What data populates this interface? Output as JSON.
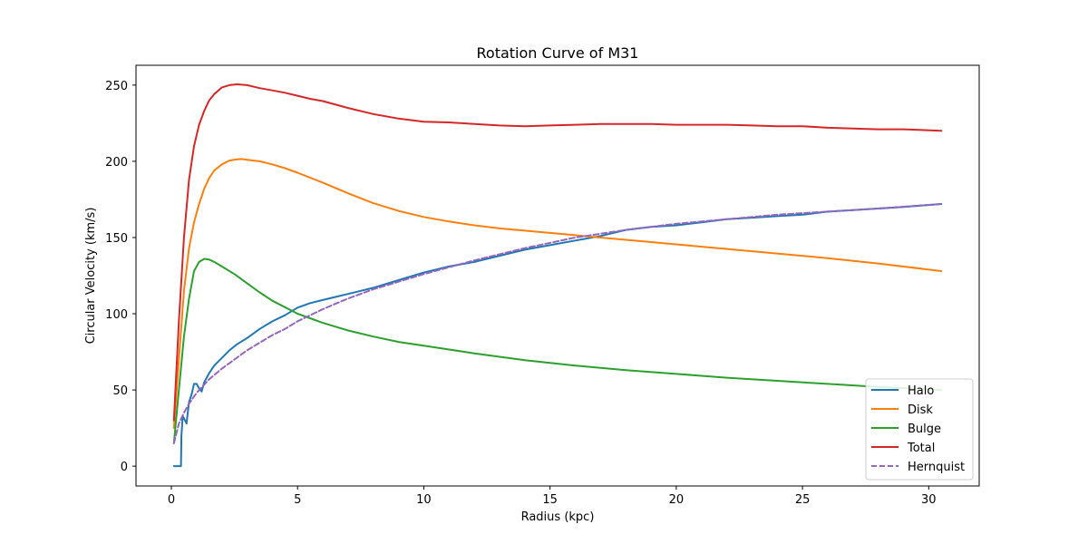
{
  "chart_data": {
    "type": "line",
    "title": "Rotation Curve of M31",
    "xlabel": "Radius (kpc)",
    "ylabel": "Circular Velocity (km/s)",
    "xlim": [
      -1.4,
      32.0
    ],
    "ylim": [
      -13,
      263
    ],
    "xticks": [
      0,
      5,
      10,
      15,
      20,
      25,
      30
    ],
    "yticks": [
      0,
      50,
      100,
      150,
      200,
      250
    ],
    "grid": false,
    "legend_position": "lower-right",
    "series": [
      {
        "name": "Halo",
        "color": "#1f77b4",
        "style": "solid",
        "x": [
          0.1,
          0.38,
          0.4,
          0.45,
          0.6,
          0.7,
          0.8,
          0.9,
          1.0,
          1.1,
          1.2,
          1.3,
          1.4,
          1.5,
          1.7,
          2.0,
          2.3,
          2.6,
          3.0,
          3.5,
          4.0,
          4.5,
          5.0,
          5.5,
          6.0,
          6.5,
          7.0,
          7.5,
          8.0,
          9.0,
          10.0,
          11.0,
          12.0,
          13.0,
          14.0,
          15.0,
          16.0,
          17.0,
          18.0,
          19.0,
          20.0,
          21.0,
          22.0,
          23.0,
          24.0,
          25.0,
          26.0,
          27.0,
          28.0,
          29.0,
          30.5
        ],
        "y": [
          0,
          0,
          20,
          33,
          28,
          42,
          47,
          54,
          54,
          51,
          49,
          55,
          58,
          61,
          66,
          71,
          76,
          80,
          84,
          90,
          95,
          99,
          104,
          107,
          109,
          111,
          113,
          115,
          117,
          122,
          127,
          131,
          134,
          138,
          142,
          145,
          148,
          151,
          155,
          157,
          158,
          160,
          162,
          163,
          164,
          165,
          167,
          168,
          169,
          170,
          172
        ]
      },
      {
        "name": "Disk",
        "color": "#ff7f0e",
        "style": "solid",
        "x": [
          0.1,
          0.3,
          0.5,
          0.7,
          0.9,
          1.1,
          1.3,
          1.5,
          1.7,
          2.0,
          2.3,
          2.6,
          2.8,
          3.0,
          3.5,
          4.0,
          4.5,
          5.0,
          6.0,
          7.0,
          8.0,
          9.0,
          10.0,
          11.0,
          12.0,
          13.0,
          14.0,
          15.0,
          16.0,
          17.0,
          18.0,
          20.0,
          22.0,
          24.0,
          26.0,
          28.0,
          30.5
        ],
        "y": [
          25,
          70,
          115,
          143,
          160,
          172,
          182,
          189,
          194,
          198,
          200.5,
          201.3,
          201.5,
          201,
          200,
          198,
          195.5,
          192.5,
          186,
          179,
          172.5,
          167.5,
          163.5,
          160.5,
          158,
          156,
          154.5,
          153,
          151.5,
          150,
          148.5,
          145.5,
          142.5,
          139.5,
          136.5,
          133,
          128
        ]
      },
      {
        "name": "Bulge",
        "color": "#2ca02c",
        "style": "solid",
        "x": [
          0.1,
          0.3,
          0.5,
          0.7,
          0.9,
          1.1,
          1.3,
          1.5,
          1.7,
          2.0,
          2.5,
          3.0,
          3.5,
          4.0,
          5.0,
          6.0,
          7.0,
          8.0,
          9.0,
          10.0,
          12.0,
          14.0,
          16.0,
          18.0,
          20.0,
          22.0,
          24.0,
          26.0,
          28.0,
          30.5
        ],
        "y": [
          15,
          50,
          85,
          110,
          128,
          134,
          136,
          135.5,
          134,
          131,
          126,
          120,
          114,
          108.5,
          100,
          94,
          89,
          85,
          81.5,
          79,
          74,
          69.5,
          66,
          63,
          60.5,
          58,
          56,
          54,
          52,
          50
        ]
      },
      {
        "name": "Total",
        "color": "#d62728",
        "style": "solid",
        "x": [
          0.1,
          0.3,
          0.5,
          0.7,
          0.9,
          1.1,
          1.3,
          1.5,
          1.7,
          2.0,
          2.3,
          2.6,
          3.0,
          3.5,
          4.0,
          4.5,
          5.0,
          5.5,
          6.0,
          7.0,
          8.0,
          9.0,
          10.0,
          11.0,
          12.0,
          13.0,
          14.0,
          15.0,
          16.0,
          17.0,
          18.0,
          19.0,
          20.0,
          21.0,
          22.0,
          23.0,
          24.0,
          25.0,
          26.0,
          27.0,
          28.0,
          29.0,
          30.5
        ],
        "y": [
          30,
          95,
          150,
          188,
          210,
          224,
          233,
          240,
          244,
          248.5,
          250,
          250.5,
          250,
          248,
          246.5,
          245,
          243,
          241,
          239.5,
          235,
          231,
          228,
          226,
          225.5,
          224.5,
          223.5,
          223,
          223.5,
          224,
          224.5,
          224.5,
          224.5,
          224,
          224,
          224,
          223.5,
          223,
          223,
          222,
          221.5,
          221,
          221,
          220
        ]
      },
      {
        "name": "Hernquist",
        "color": "#9467bd",
        "style": "dashed",
        "x": [
          0.1,
          0.3,
          0.5,
          0.7,
          1.0,
          1.5,
          2.0,
          2.5,
          3.0,
          3.5,
          4.0,
          4.5,
          5.0,
          6.0,
          7.0,
          8.0,
          9.0,
          10.0,
          12.0,
          14.0,
          16.0,
          18.0,
          20.0,
          22.0,
          24.0,
          26.0,
          28.0,
          30.5
        ],
        "y": [
          15,
          28,
          35,
          41,
          48,
          57,
          64,
          70,
          76,
          81,
          86,
          90,
          95,
          103,
          110,
          116,
          121,
          126,
          135,
          143,
          150,
          155,
          159,
          162,
          165,
          167,
          169,
          172
        ]
      }
    ]
  }
}
